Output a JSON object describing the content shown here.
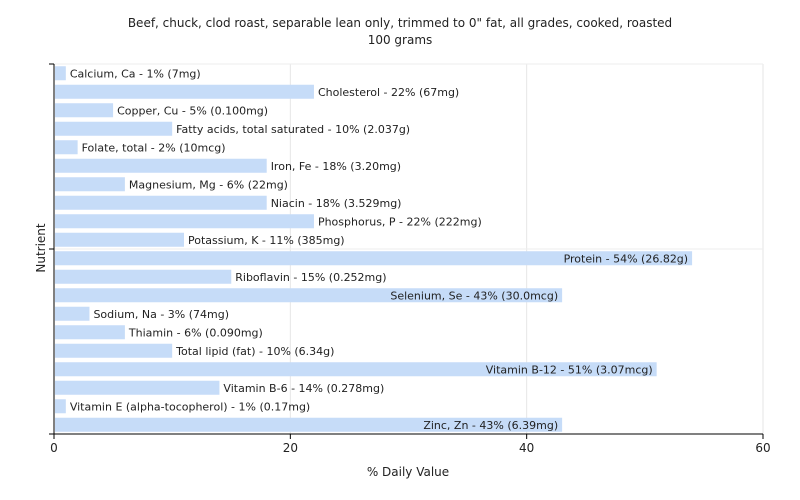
{
  "chart_data": {
    "type": "bar",
    "orientation": "horizontal",
    "title": "Beef, chuck, clod roast, separable lean only, trimmed to 0\" fat, all grades, cooked, roasted",
    "subtitle": "100 grams",
    "xlabel": "% Daily Value",
    "ylabel": "Nutrient",
    "xlim": [
      0,
      60
    ],
    "xticks": [
      0,
      20,
      40,
      60
    ],
    "grid": true,
    "bar_color": "#c6dcf8",
    "categories": [
      "Calcium, Ca",
      "Cholesterol",
      "Copper, Cu",
      "Fatty acids, total saturated",
      "Folate, total",
      "Iron, Fe",
      "Magnesium, Mg",
      "Niacin",
      "Phosphorus, P",
      "Potassium, K",
      "Protein",
      "Riboflavin",
      "Selenium, Se",
      "Sodium, Na",
      "Thiamin",
      "Total lipid (fat)",
      "Vitamin B-12",
      "Vitamin B-6",
      "Vitamin E (alpha-tocopherol)",
      "Zinc, Zn"
    ],
    "values": [
      1,
      22,
      5,
      10,
      2,
      18,
      6,
      18,
      22,
      11,
      54,
      15,
      43,
      3,
      6,
      10,
      51,
      14,
      1,
      43
    ],
    "labels": [
      "Calcium, Ca - 1% (7mg)",
      "Cholesterol - 22% (67mg)",
      "Copper, Cu - 5% (0.100mg)",
      "Fatty acids, total saturated - 10% (2.037g)",
      "Folate, total - 2% (10mcg)",
      "Iron, Fe - 18% (3.20mg)",
      "Magnesium, Mg - 6% (22mg)",
      "Niacin - 18% (3.529mg)",
      "Phosphorus, P - 22% (222mg)",
      "Potassium, K - 11% (385mg)",
      "Protein - 54% (26.82g)",
      "Riboflavin - 15% (0.252mg)",
      "Selenium, Se - 43% (30.0mcg)",
      "Sodium, Na - 3% (74mg)",
      "Thiamin - 6% (0.090mg)",
      "Total lipid (fat) - 10% (6.34g)",
      "Vitamin B-12 - 51% (3.07mcg)",
      "Vitamin B-6 - 14% (0.278mg)",
      "Vitamin E (alpha-tocopherol) - 1% (0.17mg)",
      "Zinc, Zn - 43% (6.39mg)"
    ]
  }
}
